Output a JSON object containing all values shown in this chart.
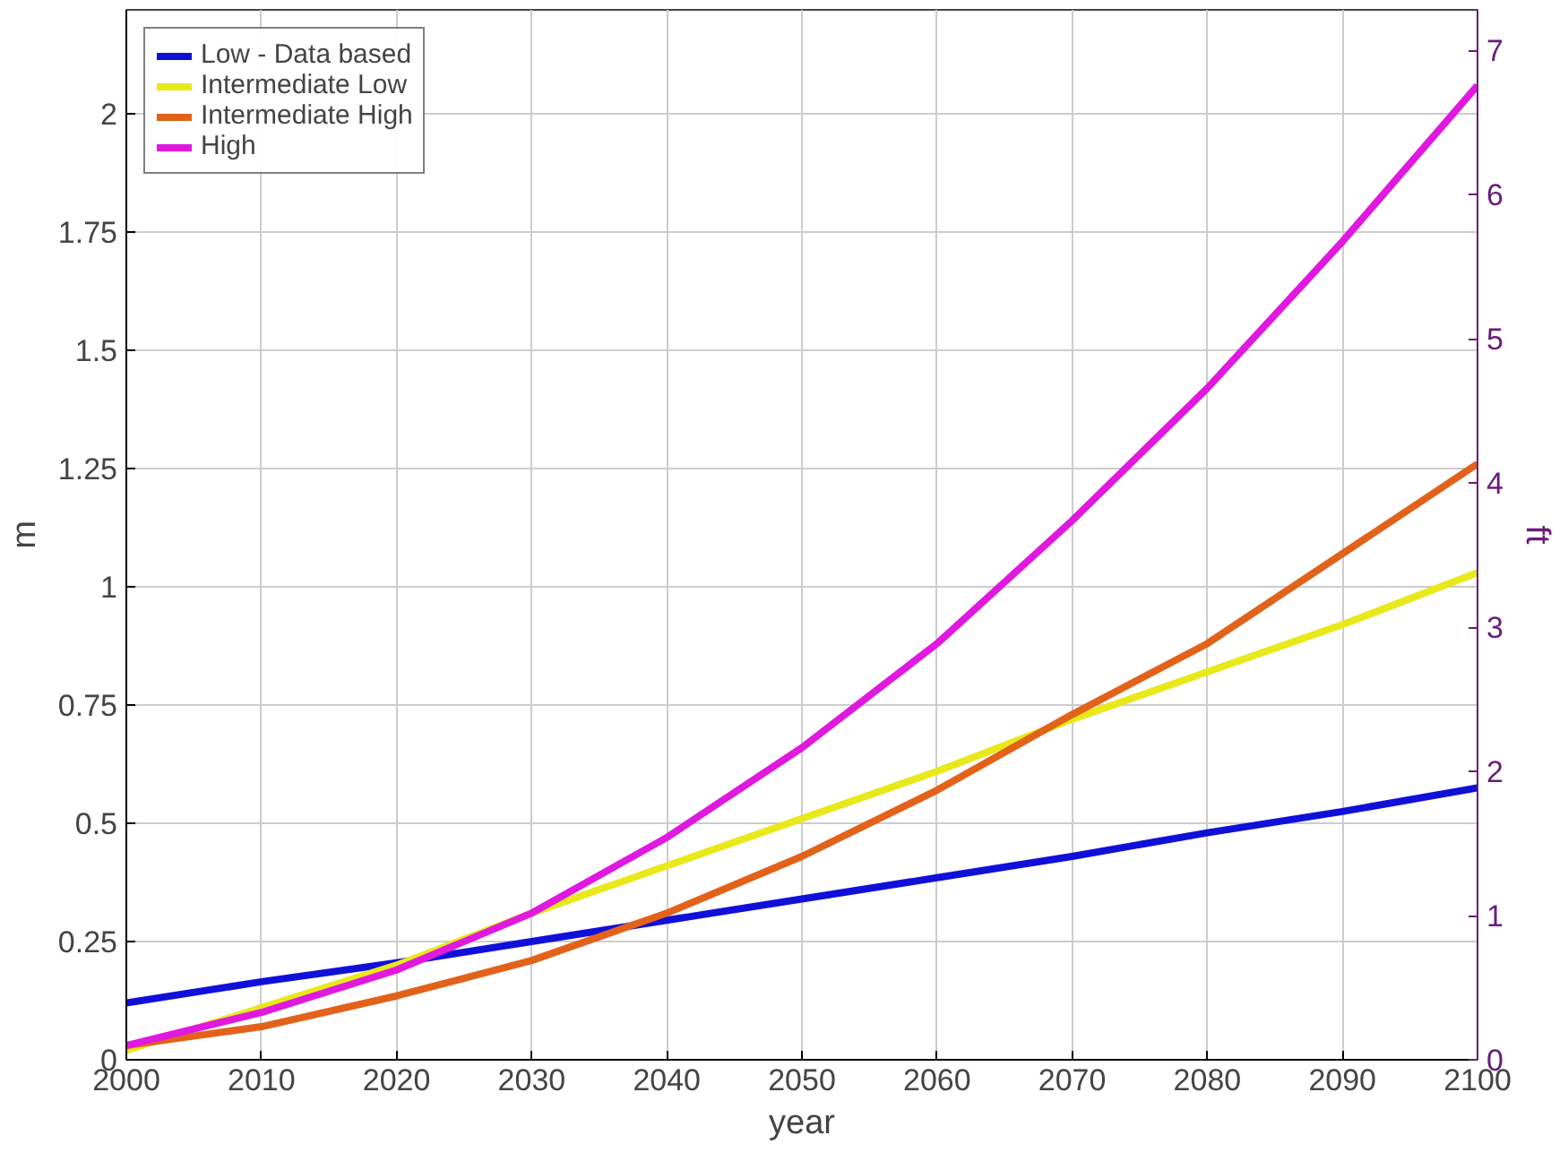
{
  "chart_data": {
    "type": "line",
    "xlabel": "year",
    "ylabel": "m",
    "y2label": "ft",
    "x": [
      2000,
      2010,
      2020,
      2030,
      2040,
      2050,
      2060,
      2070,
      2080,
      2090,
      2100
    ],
    "series": [
      {
        "name": "Low - Data based",
        "color": "#1010d8",
        "values": [
          0.12,
          0.165,
          0.205,
          0.25,
          0.295,
          0.34,
          0.385,
          0.43,
          0.48,
          0.525,
          0.575
        ]
      },
      {
        "name": "Intermediate Low",
        "color": "#e8e81a",
        "values": [
          0.02,
          0.11,
          0.2,
          0.31,
          0.41,
          0.51,
          0.61,
          0.72,
          0.82,
          0.92,
          1.03
        ]
      },
      {
        "name": "Intermediate High",
        "color": "#e2621a",
        "values": [
          0.03,
          0.07,
          0.135,
          0.21,
          0.31,
          0.43,
          0.57,
          0.73,
          0.88,
          1.07,
          1.26
        ]
      },
      {
        "name": "High",
        "color": "#e018e0",
        "values": [
          0.03,
          0.1,
          0.19,
          0.31,
          0.47,
          0.66,
          0.88,
          1.14,
          1.42,
          1.73,
          2.06
        ]
      }
    ],
    "xlim": [
      2000,
      2100
    ],
    "xticks": [
      2000,
      2010,
      2020,
      2030,
      2040,
      2050,
      2060,
      2070,
      2080,
      2090,
      2100
    ],
    "ylim": [
      0,
      2.22
    ],
    "yticks": [
      0,
      0.25,
      0.5,
      0.75,
      1,
      1.25,
      1.5,
      1.75,
      2
    ],
    "y2lim": [
      0,
      7.28
    ],
    "y2ticks": [
      0,
      1,
      2,
      3,
      4,
      5,
      6,
      7
    ],
    "grid": true,
    "legend": "top left",
    "line_style": "solid",
    "marker": "none"
  }
}
